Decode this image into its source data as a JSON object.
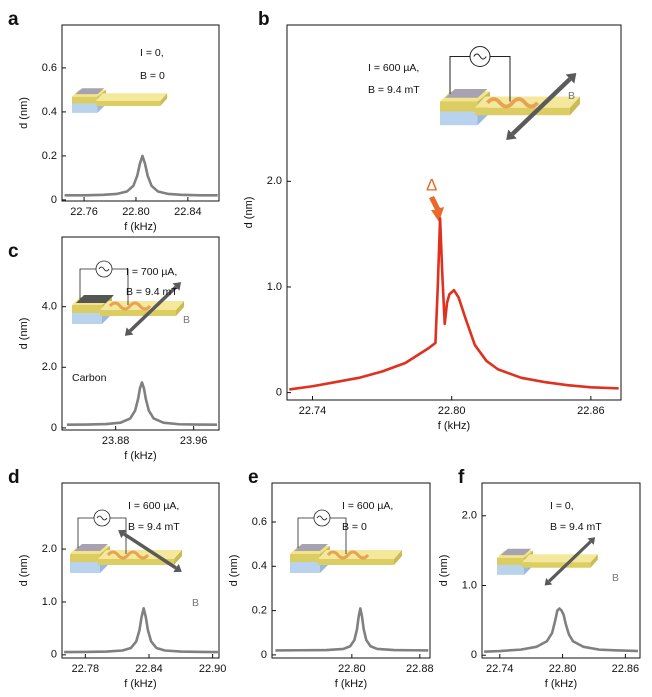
{
  "chart_data": [
    {
      "type": "line",
      "panel": "a",
      "annotations": [
        "I = 0,",
        "B = 0"
      ],
      "xlabel": "f (kHz)",
      "ylabel": "d (nm)",
      "xlim": [
        22.743,
        22.864
      ],
      "ylim": [
        -0.005,
        0.795
      ],
      "xticks": [
        22.76,
        {
          "value": 22.8,
          "label": "22.80"
        },
        22.84
      ],
      "yticks": [
        0,
        0.2,
        0.4,
        0.6
      ],
      "x": [
        22.745,
        22.76,
        22.775,
        22.785,
        22.793,
        22.798,
        22.801,
        22.803,
        22.805,
        22.807,
        22.809,
        22.812,
        22.817,
        22.825,
        22.835,
        22.85,
        22.863
      ],
      "series": [
        {
          "color": "#808080",
          "values": [
            0.021,
            0.021,
            0.023,
            0.027,
            0.038,
            0.064,
            0.11,
            0.164,
            0.2,
            0.164,
            0.11,
            0.064,
            0.038,
            0.027,
            0.023,
            0.021,
            0.021
          ]
        }
      ]
    },
    {
      "type": "line",
      "panel": "b",
      "annotations": [
        "I = 600 µA,",
        "B = 9.4 mT",
        "B",
        "Δ"
      ],
      "xlabel": "f (kHz)",
      "ylabel": "d (nm)",
      "xlim": [
        22.729,
        22.873
      ],
      "ylim": [
        -0.07,
        3.48
      ],
      "xticks": [
        22.74,
        {
          "value": 22.8,
          "label": "22.80"
        },
        22.86
      ],
      "yticks": [
        0,
        {
          "value": 1,
          "label": "1.0"
        },
        {
          "value": 2,
          "label": "2.0"
        }
      ],
      "x": [
        22.73,
        22.74,
        22.75,
        22.76,
        22.77,
        22.78,
        22.785,
        22.79,
        22.793,
        22.794,
        22.795,
        22.796,
        22.797,
        22.798,
        22.799,
        22.801,
        22.803,
        22.806,
        22.81,
        22.815,
        22.82,
        22.83,
        22.84,
        22.85,
        22.86,
        22.872
      ],
      "series": [
        {
          "color": "#e0301e",
          "values": [
            0.03,
            0.06,
            0.1,
            0.14,
            0.2,
            0.28,
            0.35,
            0.42,
            0.47,
            1.0,
            1.65,
            1.1,
            0.65,
            0.85,
            0.93,
            0.97,
            0.9,
            0.7,
            0.45,
            0.3,
            0.22,
            0.14,
            0.1,
            0.07,
            0.05,
            0.04
          ]
        }
      ]
    },
    {
      "type": "line",
      "panel": "c",
      "annotations": [
        "I = 700 µA,",
        "B = 9.4 mT",
        "B",
        "Carbon"
      ],
      "xlabel": "f (kHz)",
      "ylabel": "d (nm)",
      "xlim": [
        23.825,
        23.986
      ],
      "ylim": [
        -0.07,
        6.3
      ],
      "xticks": [
        23.88,
        23.96
      ],
      "yticks": [
        0,
        {
          "value": 2,
          "label": "2.0"
        },
        {
          "value": 4,
          "label": "4.0"
        }
      ],
      "x": [
        23.83,
        23.85,
        23.87,
        23.885,
        23.895,
        23.9,
        23.903,
        23.905,
        23.907,
        23.909,
        23.911,
        23.914,
        23.919,
        23.929,
        23.945,
        23.965,
        23.984
      ],
      "series": [
        {
          "color": "#808080",
          "values": [
            0.106,
            0.11,
            0.125,
            0.17,
            0.31,
            0.57,
            0.95,
            1.31,
            1.5,
            1.31,
            0.95,
            0.57,
            0.31,
            0.17,
            0.12,
            0.11,
            0.106
          ]
        }
      ]
    },
    {
      "type": "line",
      "panel": "d",
      "annotations": [
        "I = 600 µA,",
        "B = 9.4 mT",
        "B"
      ],
      "xlabel": "f (kHz)",
      "ylabel": "d (nm)",
      "xlim": [
        22.758,
        22.906
      ],
      "ylim": [
        -0.06,
        3.25
      ],
      "xticks": [
        22.78,
        22.84,
        {
          "value": 22.9,
          "label": "22.90"
        }
      ],
      "yticks": [
        0,
        {
          "value": 1,
          "label": "1.0"
        },
        {
          "value": 2,
          "label": "2.0"
        }
      ],
      "x": [
        22.76,
        22.78,
        22.8,
        22.815,
        22.823,
        22.828,
        22.831,
        22.833,
        22.835,
        22.837,
        22.839,
        22.842,
        22.847,
        22.855,
        22.87,
        22.89,
        22.905
      ],
      "series": [
        {
          "color": "#808080",
          "values": [
            0.052,
            0.054,
            0.061,
            0.082,
            0.13,
            0.254,
            0.465,
            0.714,
            0.88,
            0.714,
            0.465,
            0.254,
            0.13,
            0.082,
            0.061,
            0.054,
            0.053
          ]
        }
      ]
    },
    {
      "type": "line",
      "panel": "e",
      "annotations": [
        "I = 600 µA,",
        "B = 0"
      ],
      "xlabel": "f (kHz)",
      "ylabel": "d (nm)",
      "xlim": [
        22.706,
        22.892
      ],
      "ylim": [
        -0.014,
        0.776
      ],
      "xticks": [
        {
          "value": 22.8,
          "label": "22.80"
        },
        22.88
      ],
      "yticks": [
        0,
        0.2,
        0.4,
        0.6
      ],
      "x": [
        22.71,
        22.74,
        22.77,
        22.79,
        22.798,
        22.803,
        22.806,
        22.808,
        22.81,
        22.812,
        22.814,
        22.817,
        22.822,
        22.83,
        22.85,
        22.87,
        22.89
      ],
      "series": [
        {
          "color": "#808080",
          "values": [
            0.02,
            0.021,
            0.022,
            0.027,
            0.039,
            0.067,
            0.115,
            0.172,
            0.21,
            0.172,
            0.115,
            0.067,
            0.039,
            0.027,
            0.022,
            0.021,
            0.02
          ]
        }
      ]
    },
    {
      "type": "line",
      "panel": "f",
      "annotations": [
        "I = 0,",
        "B = 9.4 mT",
        "B"
      ],
      "xlabel": "f (kHz)",
      "ylabel": "d (nm)",
      "xlim": [
        22.723,
        22.874
      ],
      "ylim": [
        -0.04,
        2.47
      ],
      "xticks": [
        22.74,
        {
          "value": 22.8,
          "label": "22.80"
        },
        22.86
      ],
      "yticks": [
        0,
        {
          "value": 1,
          "label": "1.0"
        },
        {
          "value": 2,
          "label": "2.0"
        }
      ],
      "x": [
        22.725,
        22.74,
        22.76,
        22.775,
        22.785,
        22.79,
        22.793,
        22.795,
        22.797,
        22.799,
        22.801,
        22.803,
        22.806,
        22.81,
        22.82,
        22.835,
        22.85,
        22.872
      ],
      "series": [
        {
          "color": "#808080",
          "values": [
            0.05,
            0.06,
            0.08,
            0.12,
            0.2,
            0.32,
            0.5,
            0.64,
            0.67,
            0.64,
            0.58,
            0.45,
            0.3,
            0.2,
            0.12,
            0.08,
            0.07,
            0.06
          ]
        }
      ]
    }
  ]
}
